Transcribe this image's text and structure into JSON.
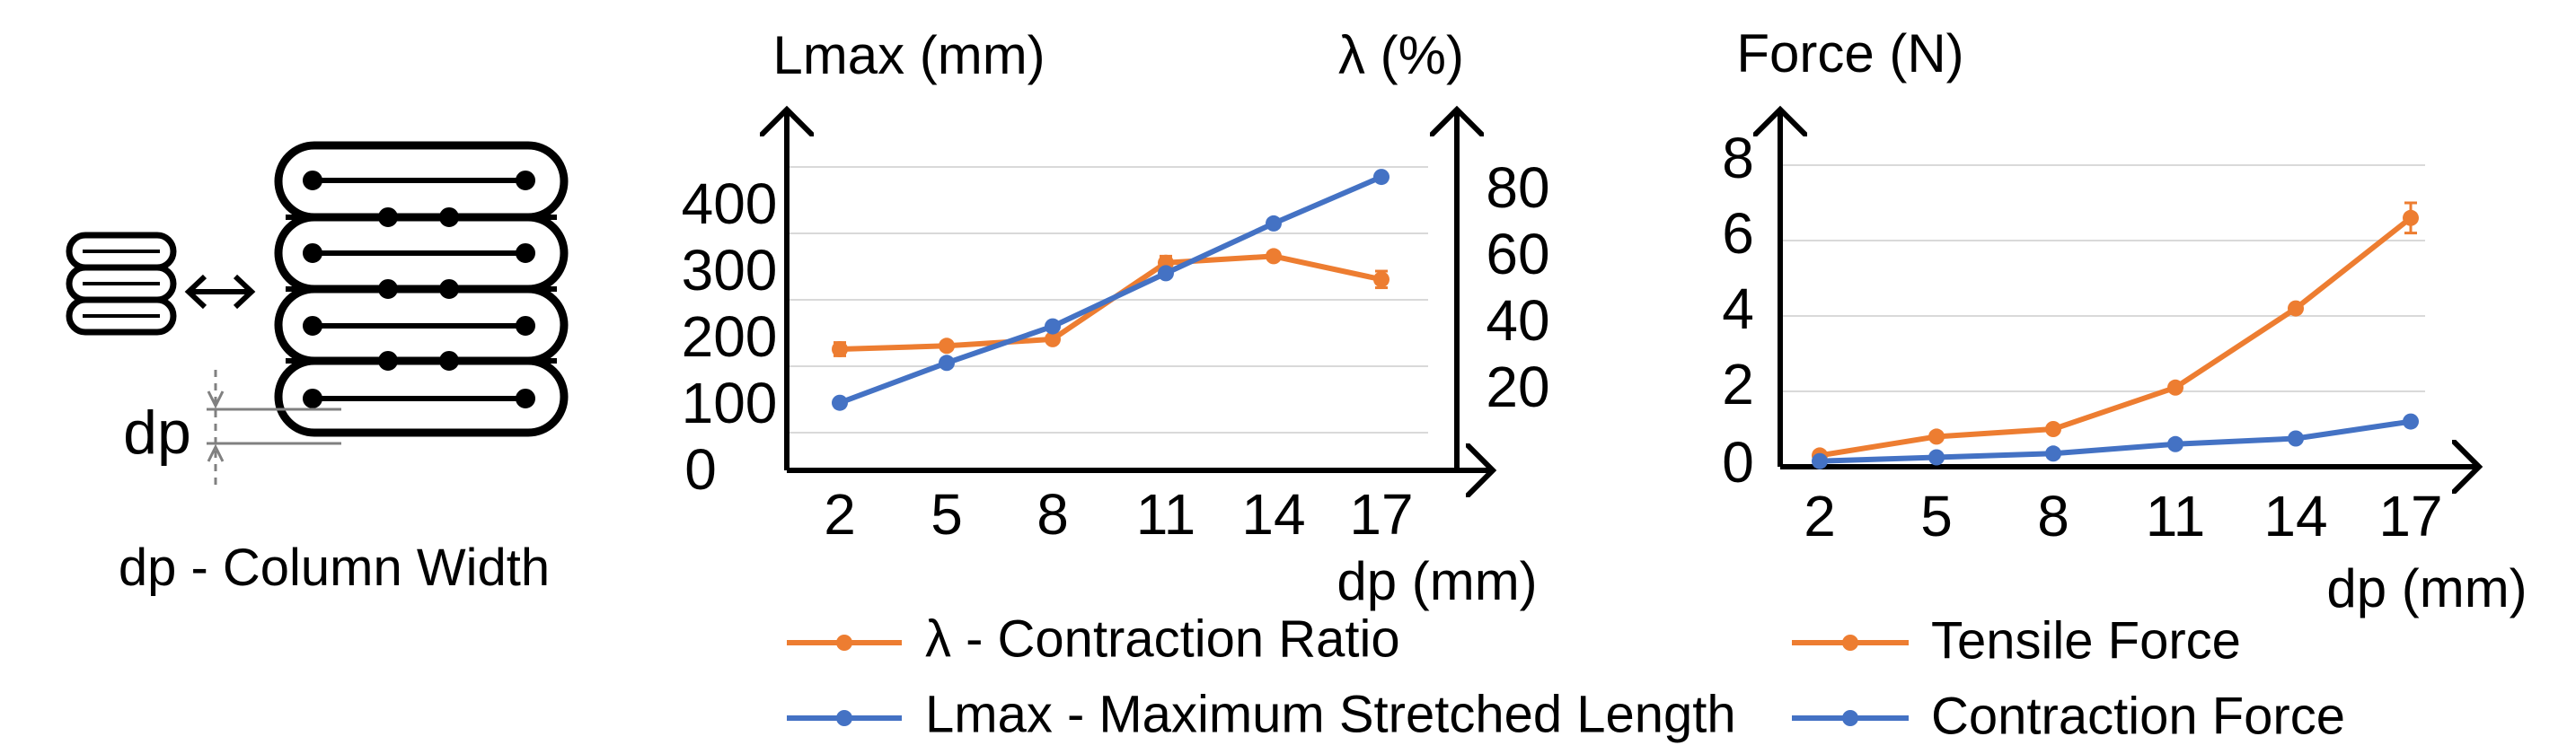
{
  "diagram": {
    "dp_label": "dp",
    "caption": "dp - Column Width"
  },
  "chart_data": [
    {
      "type": "line",
      "x": [
        2,
        5,
        8,
        11,
        14,
        17
      ],
      "x_ticks": [
        "2",
        "5",
        "8",
        "11",
        "14",
        "17"
      ],
      "xlabel": "dp (mm)",
      "ylabel_left": "Lmax (mm)",
      "ylabel_right": "λ (%)",
      "left_ticks": [
        "0",
        "100",
        "200",
        "300",
        "400"
      ],
      "right_ticks": [
        "20",
        "40",
        "60",
        "80"
      ],
      "ylim_left": [
        0,
        400
      ],
      "ylim_right": [
        0,
        80
      ],
      "grid": true,
      "legend": "bottom",
      "series": [
        {
          "name": "λ - Contraction Ratio",
          "axis": "right",
          "color": "#ED7D31",
          "values": [
            30,
            31,
            33,
            56,
            58,
            51
          ],
          "error": [
            2,
            0,
            0,
            2,
            0,
            2.5
          ]
        },
        {
          "name": "Lmax - Maximum Stretched Length",
          "axis": "left",
          "color": "#4472C4",
          "values": [
            45,
            105,
            160,
            240,
            315,
            385
          ],
          "error": [
            0,
            0,
            0,
            0,
            0,
            0
          ]
        }
      ]
    },
    {
      "type": "line",
      "x": [
        2,
        5,
        8,
        11,
        14,
        17
      ],
      "x_ticks": [
        "2",
        "5",
        "8",
        "11",
        "14",
        "17"
      ],
      "xlabel": "dp (mm)",
      "ylabel": "Force (N)",
      "y_ticks": [
        "0",
        "2",
        "4",
        "6",
        "8"
      ],
      "ylim": [
        0,
        8
      ],
      "grid": true,
      "legend": "bottom",
      "series": [
        {
          "name": "Tensile Force",
          "color": "#ED7D31",
          "values": [
            0.3,
            0.8,
            1.0,
            2.1,
            4.2,
            6.6
          ],
          "error": [
            0,
            0,
            0,
            0,
            0,
            0.4
          ]
        },
        {
          "name": "Contraction Force",
          "color": "#4472C4",
          "values": [
            0.15,
            0.25,
            0.35,
            0.6,
            0.75,
            1.2
          ],
          "error": [
            0,
            0,
            0,
            0,
            0,
            0
          ]
        }
      ]
    }
  ]
}
